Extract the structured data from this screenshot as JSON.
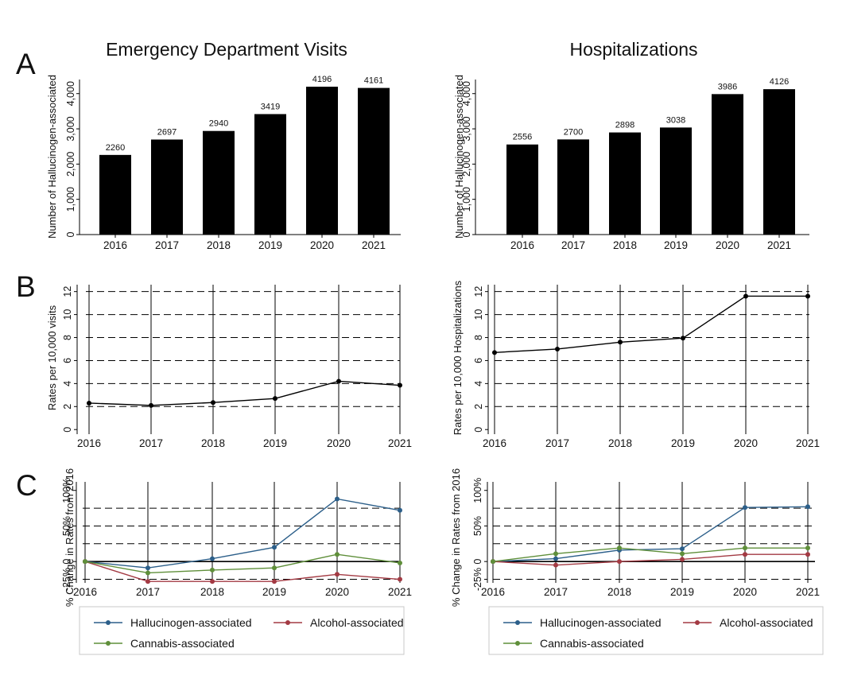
{
  "panel_labels": [
    "A",
    "B",
    "C"
  ],
  "colors": {
    "bars": "#000000",
    "hallucinogen": "#2c5f8a",
    "alcohol": "#a33a43",
    "cannabis": "#5f8f3a",
    "grid": "#000000"
  },
  "chart_data": [
    {
      "id": "A_ed",
      "type": "bar",
      "title": "Emergency Department Visits",
      "ylabel": "Number of Hallucinogen-associated",
      "categories": [
        "2016",
        "2017",
        "2018",
        "2019",
        "2020",
        "2021"
      ],
      "values": [
        2260,
        2697,
        2940,
        3419,
        4196,
        4161
      ],
      "data_labels": [
        "2260",
        "2697",
        "2940",
        "3419",
        "4196",
        "4161"
      ],
      "ylim": [
        0,
        4400
      ],
      "yticks": [
        0,
        1000,
        2000,
        3000,
        4000
      ],
      "ytick_labels": [
        "0",
        "1,000",
        "2,000",
        "3,000",
        "4,000"
      ]
    },
    {
      "id": "A_hosp",
      "type": "bar",
      "title": "Hospitalizations",
      "ylabel": "Number of Hallucinogen-associated",
      "categories": [
        "2016",
        "2017",
        "2018",
        "2019",
        "2020",
        "2021"
      ],
      "values": [
        2556,
        2700,
        2898,
        3038,
        3986,
        4126
      ],
      "data_labels": [
        "2556",
        "2700",
        "2898",
        "3038",
        "3986",
        "4126"
      ],
      "ylim": [
        0,
        4400
      ],
      "yticks": [
        0,
        1000,
        2000,
        3000,
        4000
      ],
      "ytick_labels": [
        "0",
        "1,000",
        "2,000",
        "3,000",
        "4,000"
      ]
    },
    {
      "id": "B_ed",
      "type": "line",
      "ylabel": "Rates per 10,000 visits",
      "x": [
        "2016",
        "2017",
        "2018",
        "2019",
        "2020",
        "2021"
      ],
      "values": [
        2.3,
        2.1,
        2.35,
        2.7,
        4.2,
        3.85
      ],
      "ylim": [
        -0.4,
        12.6
      ],
      "yticks": [
        0,
        2,
        4,
        6,
        8,
        10,
        12
      ],
      "ytick_labels": [
        "0",
        "2",
        "4",
        "6",
        "8",
        "10",
        "12"
      ],
      "dashed_grid": [
        2,
        4,
        6,
        8,
        10,
        12
      ],
      "vertical_grid": true
    },
    {
      "id": "B_hosp",
      "type": "line",
      "ylabel": "Rates per 10,000 Hospitalizations",
      "x": [
        "2016",
        "2017",
        "2018",
        "2019",
        "2020",
        "2021"
      ],
      "values": [
        6.7,
        7.0,
        7.6,
        7.95,
        11.6,
        11.6
      ],
      "ylim": [
        -0.4,
        12.6
      ],
      "yticks": [
        0,
        2,
        4,
        6,
        8,
        10,
        12
      ],
      "ytick_labels": [
        "0",
        "2",
        "4",
        "6",
        "8",
        "10",
        "12"
      ],
      "dashed_grid": [
        2,
        4,
        6,
        8,
        10,
        12
      ],
      "vertical_grid": true
    },
    {
      "id": "C_ed",
      "type": "line",
      "ylabel": "% Change in Rates from 2016",
      "x": [
        "2016",
        "2017",
        "2018",
        "2019",
        "2020",
        "2021"
      ],
      "series": [
        {
          "name": "Hallucinogen-associated",
          "color_key": "hallucinogen",
          "values": [
            0,
            -9,
            4,
            20,
            88,
            72
          ]
        },
        {
          "name": "Alcohol-associated",
          "color_key": "alcohol",
          "values": [
            0,
            -28,
            -28,
            -28,
            -18,
            -25
          ]
        },
        {
          "name": "Cannabis-associated",
          "color_key": "cannabis",
          "values": [
            0,
            -16,
            -12,
            -9,
            10,
            -2
          ]
        }
      ],
      "ylim": [
        -30,
        112
      ],
      "yticks": [
        -25,
        0,
        50,
        100
      ],
      "ytick_labels": [
        "-25%",
        "0",
        "50%",
        "100%"
      ],
      "dashed_grid": [
        -25,
        25,
        50,
        75
      ],
      "solid_zero": true,
      "vertical_grid": true
    },
    {
      "id": "C_hosp",
      "type": "line",
      "ylabel": "% Change in Rates from 2016",
      "x": [
        "2016",
        "2017",
        "2018",
        "2019",
        "2020",
        "2021"
      ],
      "series": [
        {
          "name": "Hallucinogen-associated",
          "color_key": "hallucinogen",
          "values": [
            0,
            4,
            16,
            18,
            76,
            77
          ]
        },
        {
          "name": "Alcohol-associated",
          "color_key": "alcohol",
          "values": [
            0,
            -5,
            0,
            3,
            10,
            10
          ]
        },
        {
          "name": "Cannabis-associated",
          "color_key": "cannabis",
          "values": [
            0,
            11,
            19,
            11,
            19,
            19
          ]
        }
      ],
      "ylim": [
        -30,
        112
      ],
      "yticks": [
        -25,
        0,
        50,
        100
      ],
      "ytick_labels": [
        "-25%",
        "0",
        "50%",
        "100%"
      ],
      "dashed_grid": [
        -25,
        25,
        50,
        75
      ],
      "solid_zero": true,
      "vertical_grid": true
    }
  ]
}
